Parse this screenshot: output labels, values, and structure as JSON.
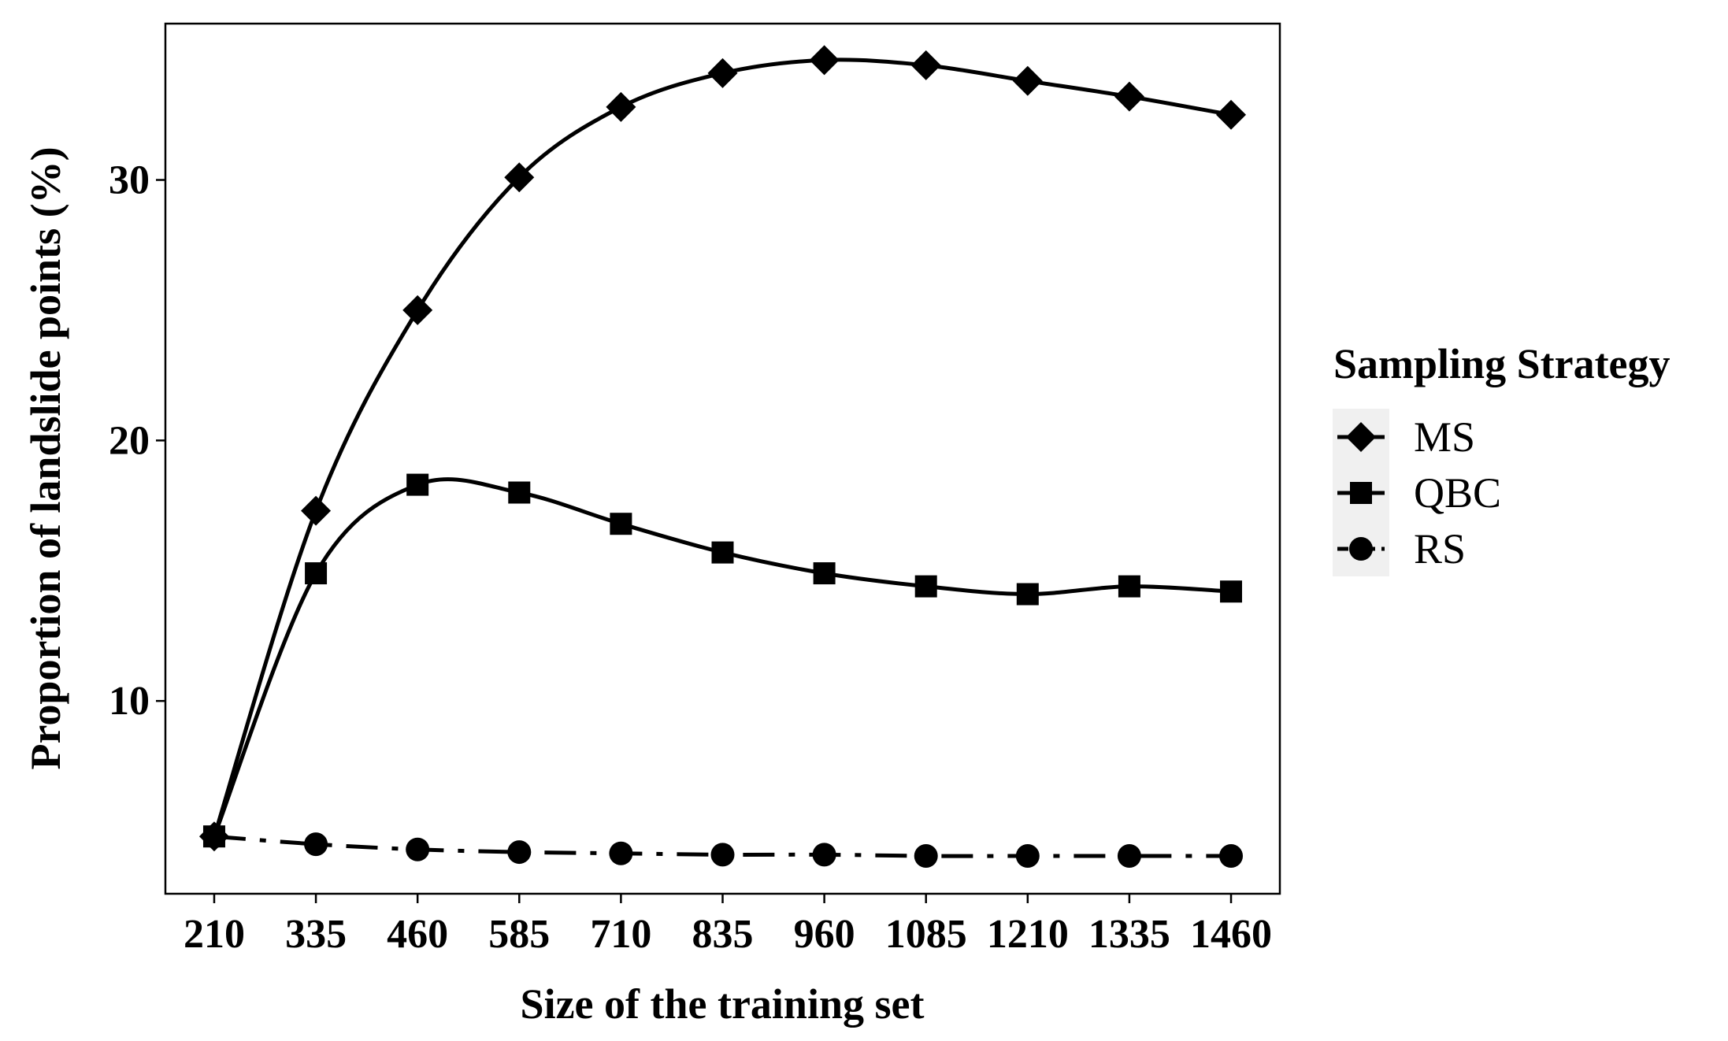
{
  "chart_data": {
    "type": "line",
    "title": "",
    "xlabel": "Size of the training set",
    "ylabel": "Proportion of landslide points (%)",
    "x": [
      210,
      335,
      460,
      585,
      710,
      835,
      960,
      1085,
      1210,
      1335,
      1460
    ],
    "x_tick_labels": [
      "210",
      "335",
      "460",
      "585",
      "710",
      "835",
      "960",
      "1085",
      "1210",
      "1335",
      "1460"
    ],
    "y_ticks": [
      10,
      20,
      30
    ],
    "xlim": [
      150,
      1520
    ],
    "ylim": [
      2.6,
      36.0
    ],
    "grid": false,
    "legend": {
      "title": "Sampling Strategy",
      "placement": "right",
      "items": [
        "MS",
        "QBC",
        "RS"
      ]
    },
    "series": [
      {
        "name": "MS",
        "marker": "diamond",
        "line_style": "solid",
        "values": [
          4.8,
          17.3,
          25.0,
          30.1,
          32.8,
          34.1,
          34.6,
          34.4,
          33.8,
          33.2,
          32.5
        ]
      },
      {
        "name": "QBC",
        "marker": "square",
        "line_style": "solid",
        "values": [
          4.8,
          14.9,
          18.3,
          18.0,
          16.8,
          15.7,
          14.9,
          14.4,
          14.1,
          14.4,
          14.2
        ]
      },
      {
        "name": "RS",
        "marker": "circle",
        "line_style": "dashdot",
        "values": [
          4.8,
          4.5,
          4.3,
          4.2,
          4.15,
          4.1,
          4.1,
          4.05,
          4.05,
          4.05,
          4.05
        ]
      }
    ]
  }
}
